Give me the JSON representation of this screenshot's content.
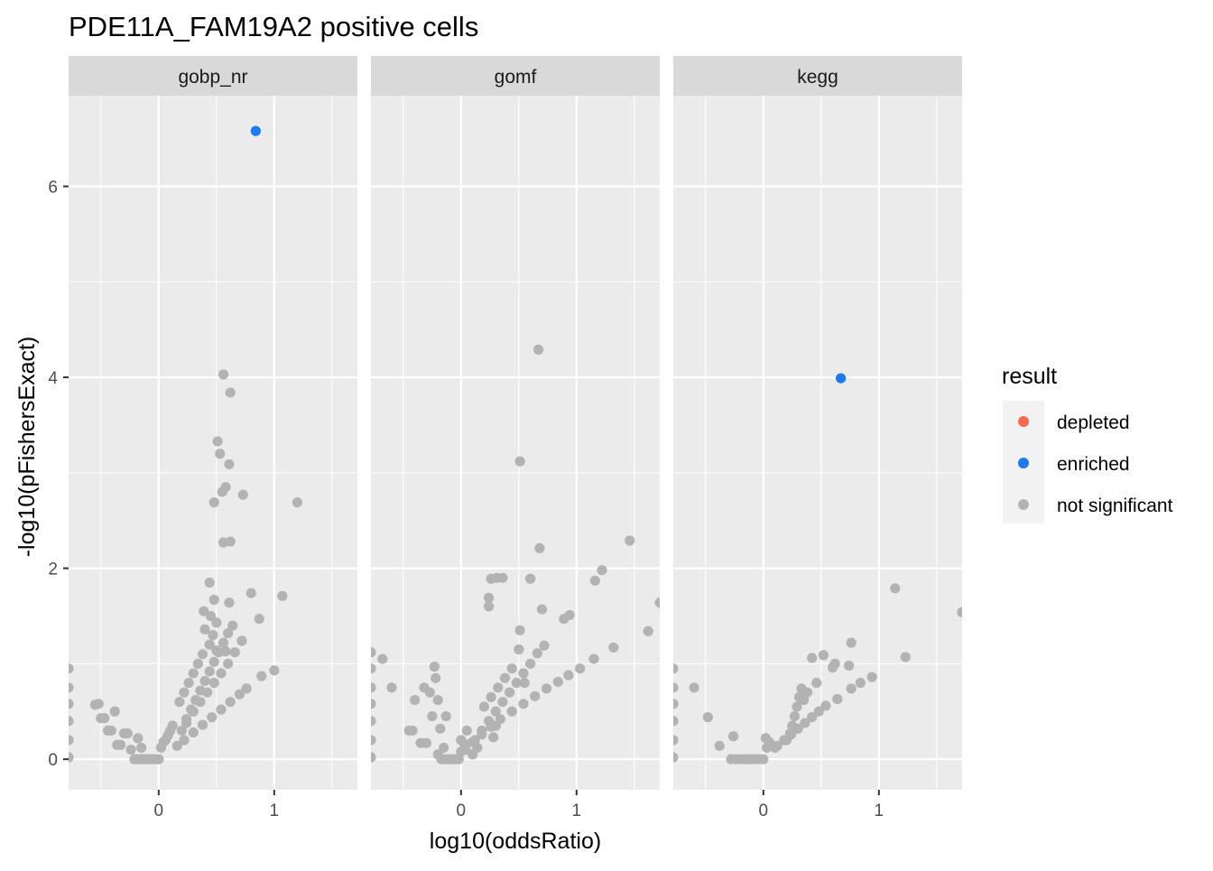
{
  "chart_data": {
    "type": "scatter",
    "title": "PDE11A_FAM19A2 positive cells",
    "xlabel": "log10(oddsRatio)",
    "ylabel": "-log10(pFishersExact)",
    "xlim": [
      -0.78,
      1.72
    ],
    "ylim": [
      -0.32,
      6.95
    ],
    "x_ticks": [
      0,
      1
    ],
    "y_ticks": [
      0,
      2,
      4,
      6
    ],
    "grid": true,
    "facets": [
      "gobp_nr",
      "gomf",
      "kegg"
    ],
    "legend": {
      "title": "result",
      "position": "right",
      "entries": [
        {
          "label": "depleted",
          "color": "#F8694D"
        },
        {
          "label": "enriched",
          "color": "#1F7AF2"
        },
        {
          "label": "not significant",
          "color": "#B3B3B3"
        }
      ]
    },
    "series": [
      {
        "facet": "gobp_nr",
        "result": "enriched",
        "points": [
          [
            0.84,
            6.58
          ]
        ]
      },
      {
        "facet": "gobp_nr",
        "result": "not significant",
        "points": [
          [
            0.56,
            4.03
          ],
          [
            0.62,
            3.84
          ],
          [
            0.51,
            3.33
          ],
          [
            0.53,
            3.2
          ],
          [
            0.61,
            3.09
          ],
          [
            0.58,
            2.85
          ],
          [
            0.55,
            2.8
          ],
          [
            0.73,
            2.77
          ],
          [
            0.48,
            2.69
          ],
          [
            1.2,
            2.69
          ],
          [
            0.62,
            2.28
          ],
          [
            0.56,
            2.27
          ],
          [
            0.8,
            1.74
          ],
          [
            1.07,
            1.71
          ],
          [
            0.44,
            1.85
          ],
          [
            0.48,
            1.67
          ],
          [
            0.61,
            1.64
          ],
          [
            0.87,
            1.47
          ],
          [
            0.39,
            1.55
          ],
          [
            0.45,
            1.5
          ],
          [
            0.5,
            1.43
          ],
          [
            0.4,
            1.36
          ],
          [
            0.47,
            1.3
          ],
          [
            0.44,
            1.2
          ],
          [
            0.5,
            1.14
          ],
          [
            0.58,
            1.13
          ],
          [
            0.38,
            1.1
          ],
          [
            0.34,
            1.0
          ],
          [
            0.3,
            0.9
          ],
          [
            0.26,
            0.8
          ],
          [
            0.22,
            0.7
          ],
          [
            0.18,
            0.6
          ],
          [
            0.64,
            1.4
          ],
          [
            0.6,
            1.32
          ],
          [
            0.56,
            1.22
          ],
          [
            0.52,
            1.12
          ],
          [
            0.48,
            1.02
          ],
          [
            0.44,
            0.92
          ],
          [
            0.4,
            0.82
          ],
          [
            0.36,
            0.72
          ],
          [
            0.32,
            0.62
          ],
          [
            0.28,
            0.52
          ],
          [
            0.24,
            0.42
          ],
          [
            0.72,
            1.24
          ],
          [
            0.66,
            1.12
          ],
          [
            0.6,
            1.0
          ],
          [
            0.54,
            0.9
          ],
          [
            0.48,
            0.8
          ],
          [
            0.42,
            0.7
          ],
          [
            0.36,
            0.6
          ],
          [
            0.3,
            0.5
          ],
          [
            0.24,
            0.38
          ],
          [
            0.2,
            0.3
          ],
          [
            0.76,
            0.74
          ],
          [
            0.7,
            0.68
          ],
          [
            0.62,
            0.6
          ],
          [
            0.54,
            0.52
          ],
          [
            0.46,
            0.44
          ],
          [
            0.38,
            0.36
          ],
          [
            0.3,
            0.28
          ],
          [
            0.22,
            0.2
          ],
          [
            0.16,
            0.14
          ],
          [
            0.89,
            0.87
          ],
          [
            1.0,
            0.93
          ],
          [
            -0.78,
            0.95
          ],
          [
            -0.78,
            0.75
          ],
          [
            -0.78,
            0.58
          ],
          [
            -0.78,
            0.4
          ],
          [
            -0.78,
            0.2
          ],
          [
            -0.78,
            0.02
          ],
          [
            -0.55,
            0.57
          ],
          [
            -0.52,
            0.58
          ],
          [
            -0.5,
            0.43
          ],
          [
            -0.47,
            0.43
          ],
          [
            -0.44,
            0.3
          ],
          [
            -0.41,
            0.3
          ],
          [
            -0.38,
            0.5
          ],
          [
            -0.36,
            0.15
          ],
          [
            -0.33,
            0.15
          ],
          [
            -0.3,
            0.27
          ],
          [
            -0.27,
            0.27
          ],
          [
            -0.24,
            0.1
          ],
          [
            -0.21,
            0.0
          ],
          [
            -0.18,
            0.0
          ],
          [
            -0.15,
            0.0
          ],
          [
            -0.12,
            0.0
          ],
          [
            -0.09,
            0.0
          ],
          [
            -0.06,
            0.0
          ],
          [
            -0.03,
            0.0
          ],
          [
            0.0,
            0.0
          ],
          [
            0.02,
            0.12
          ],
          [
            0.04,
            0.18
          ],
          [
            0.06,
            0.2
          ],
          [
            0.08,
            0.25
          ],
          [
            0.1,
            0.3
          ],
          [
            0.12,
            0.35
          ],
          [
            -0.18,
            0.22
          ],
          [
            -0.15,
            0.12
          ]
        ]
      },
      {
        "facet": "gomf",
        "result": "not significant",
        "points": [
          [
            0.67,
            4.29
          ],
          [
            0.51,
            3.12
          ],
          [
            0.68,
            2.21
          ],
          [
            1.46,
            2.29
          ],
          [
            1.22,
            1.98
          ],
          [
            1.16,
            1.87
          ],
          [
            0.6,
            1.89
          ],
          [
            0.36,
            1.9
          ],
          [
            0.26,
            1.89
          ],
          [
            0.31,
            1.9
          ],
          [
            0.24,
            1.69
          ],
          [
            0.24,
            1.6
          ],
          [
            0.7,
            1.57
          ],
          [
            0.94,
            1.51
          ],
          [
            0.89,
            1.47
          ],
          [
            0.51,
            1.35
          ],
          [
            1.72,
            1.64
          ],
          [
            1.62,
            1.34
          ],
          [
            1.32,
            1.17
          ],
          [
            1.15,
            1.05
          ],
          [
            1.03,
            0.95
          ],
          [
            0.93,
            0.88
          ],
          [
            0.84,
            0.81
          ],
          [
            0.74,
            0.74
          ],
          [
            0.64,
            0.66
          ],
          [
            0.54,
            0.58
          ],
          [
            0.44,
            0.5
          ],
          [
            0.34,
            0.42
          ],
          [
            0.26,
            0.34
          ],
          [
            0.18,
            0.26
          ],
          [
            0.1,
            0.18
          ],
          [
            0.04,
            0.1
          ],
          [
            0.72,
            1.19
          ],
          [
            0.66,
            1.11
          ],
          [
            0.6,
            1.0
          ],
          [
            0.54,
            0.9
          ],
          [
            0.48,
            0.8
          ],
          [
            0.42,
            0.7
          ],
          [
            0.36,
            0.6
          ],
          [
            0.3,
            0.5
          ],
          [
            0.24,
            0.4
          ],
          [
            0.18,
            0.3
          ],
          [
            0.12,
            0.2
          ],
          [
            0.5,
            1.15
          ],
          [
            0.44,
            0.95
          ],
          [
            0.38,
            0.85
          ],
          [
            0.32,
            0.75
          ],
          [
            0.26,
            0.65
          ],
          [
            0.2,
            0.55
          ],
          [
            0.55,
            0.8
          ],
          [
            0.3,
            0.35
          ],
          [
            0.28,
            0.23
          ],
          [
            -0.78,
            1.12
          ],
          [
            -0.78,
            0.95
          ],
          [
            -0.78,
            0.75
          ],
          [
            -0.78,
            0.58
          ],
          [
            -0.78,
            0.4
          ],
          [
            -0.78,
            0.2
          ],
          [
            -0.78,
            0.02
          ],
          [
            -0.68,
            1.05
          ],
          [
            -0.6,
            0.75
          ],
          [
            -0.45,
            0.3
          ],
          [
            -0.42,
            0.3
          ],
          [
            -0.4,
            0.62
          ],
          [
            -0.35,
            0.17
          ],
          [
            -0.3,
            0.17
          ],
          [
            -0.32,
            0.75
          ],
          [
            -0.27,
            0.7
          ],
          [
            -0.25,
            0.45
          ],
          [
            -0.23,
            0.97
          ],
          [
            -0.22,
            0.85
          ],
          [
            -0.2,
            0.62
          ],
          [
            -0.18,
            0.32
          ],
          [
            -0.15,
            0.12
          ],
          [
            -0.13,
            0.45
          ],
          [
            -0.2,
            0.05
          ],
          [
            -0.17,
            0.0
          ],
          [
            -0.14,
            0.0
          ],
          [
            -0.11,
            0.0
          ],
          [
            -0.08,
            0.0
          ],
          [
            -0.05,
            0.0
          ],
          [
            -0.02,
            0.0
          ],
          [
            0.0,
            0.08
          ],
          [
            0.0,
            0.2
          ],
          [
            0.1,
            0.05
          ],
          [
            0.14,
            0.12
          ],
          [
            0.05,
            0.3
          ],
          [
            0.03,
            0.16
          ]
        ]
      },
      {
        "facet": "kegg",
        "result": "enriched",
        "points": [
          [
            0.67,
            3.99
          ]
        ]
      },
      {
        "facet": "kegg",
        "result": "not significant",
        "points": [
          [
            1.14,
            1.79
          ],
          [
            1.72,
            1.54
          ],
          [
            0.76,
            1.22
          ],
          [
            0.52,
            1.09
          ],
          [
            0.42,
            1.06
          ],
          [
            1.23,
            1.07
          ],
          [
            0.62,
            1.0
          ],
          [
            0.6,
            0.96
          ],
          [
            0.74,
            0.98
          ],
          [
            0.94,
            0.86
          ],
          [
            0.84,
            0.8
          ],
          [
            0.76,
            0.74
          ],
          [
            0.64,
            0.63
          ],
          [
            0.54,
            0.56
          ],
          [
            0.48,
            0.5
          ],
          [
            0.42,
            0.44
          ],
          [
            0.36,
            0.38
          ],
          [
            0.3,
            0.32
          ],
          [
            0.24,
            0.26
          ],
          [
            0.18,
            0.2
          ],
          [
            0.12,
            0.14
          ],
          [
            0.33,
            0.74
          ],
          [
            0.31,
            0.65
          ],
          [
            0.29,
            0.55
          ],
          [
            0.27,
            0.45
          ],
          [
            0.25,
            0.35
          ],
          [
            0.23,
            0.27
          ],
          [
            0.2,
            0.2
          ],
          [
            0.38,
            0.7
          ],
          [
            0.35,
            0.62
          ],
          [
            0.46,
            0.8
          ],
          [
            0.1,
            0.12
          ],
          [
            0.05,
            0.18
          ],
          [
            0.02,
            0.22
          ],
          [
            -0.78,
            0.95
          ],
          [
            -0.78,
            0.75
          ],
          [
            -0.78,
            0.58
          ],
          [
            -0.78,
            0.4
          ],
          [
            -0.78,
            0.2
          ],
          [
            -0.78,
            0.02
          ],
          [
            -0.6,
            0.75
          ],
          [
            -0.48,
            0.44
          ],
          [
            -0.38,
            0.14
          ],
          [
            -0.26,
            0.24
          ],
          [
            -0.28,
            0.0
          ],
          [
            -0.24,
            0.0
          ],
          [
            -0.2,
            0.0
          ],
          [
            -0.16,
            0.0
          ],
          [
            -0.12,
            0.0
          ],
          [
            -0.08,
            0.0
          ],
          [
            -0.04,
            0.0
          ],
          [
            0.0,
            0.0
          ],
          [
            0.03,
            0.12
          ]
        ]
      }
    ]
  }
}
